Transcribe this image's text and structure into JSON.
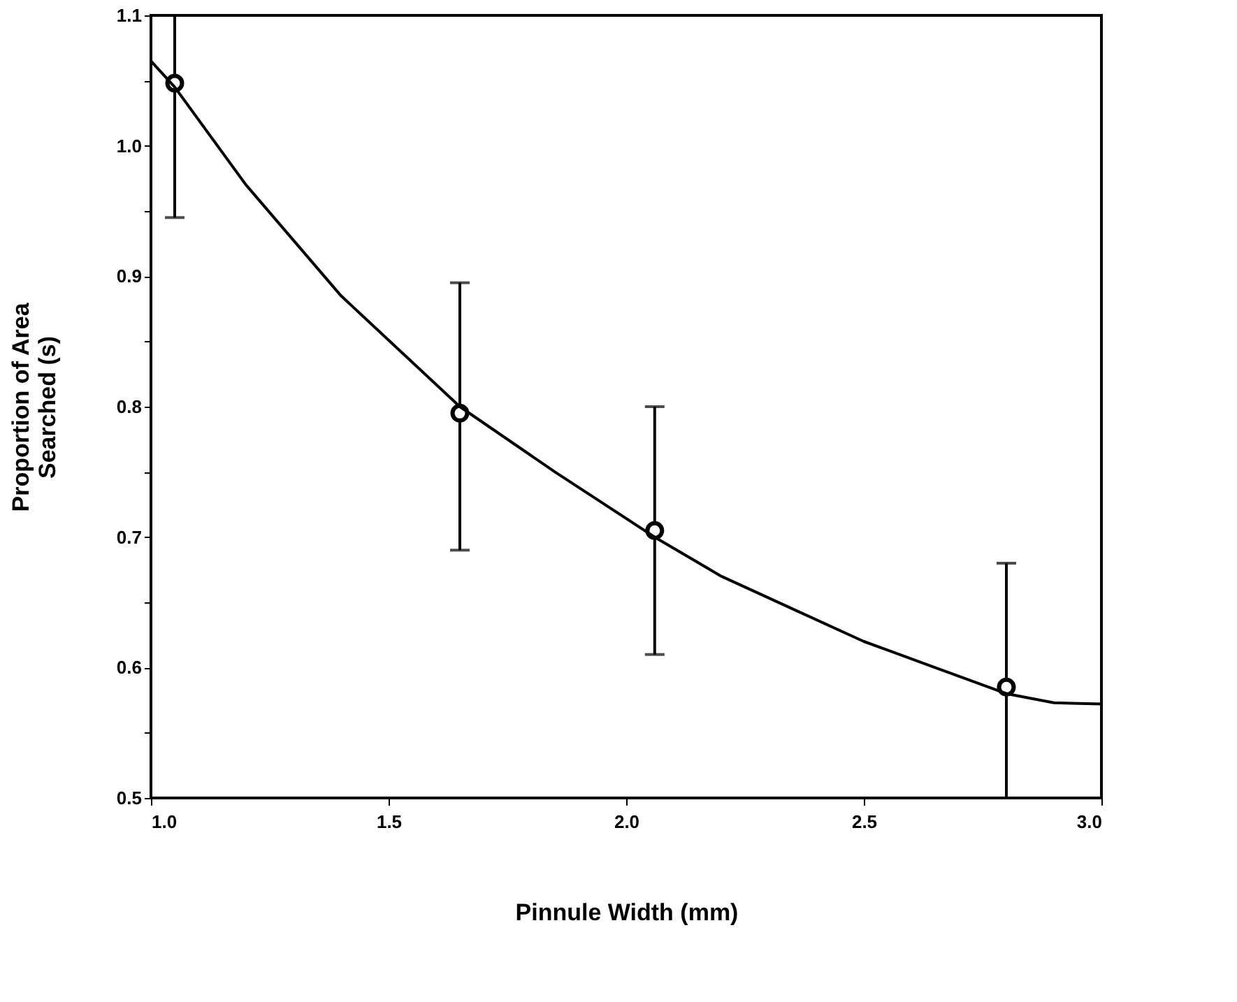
{
  "chart_data": {
    "type": "scatter",
    "xlabel": "Pinnule Width  (mm)",
    "ylabel": "Proportion of Area\nSearched (s)",
    "xlim": [
      1.0,
      3.0
    ],
    "ylim": [
      0.5,
      1.1
    ],
    "xticks": [
      {
        "value": 1.0,
        "label": "1.0"
      },
      {
        "value": 1.5,
        "label": "1.5"
      },
      {
        "value": 2.0,
        "label": "2.0"
      },
      {
        "value": 2.5,
        "label": "2.5"
      },
      {
        "value": 3.0,
        "label": "3.0"
      }
    ],
    "yticks": [
      {
        "value": 0.5,
        "label": "0.5"
      },
      {
        "value": 0.55,
        "label": null
      },
      {
        "value": 0.6,
        "label": "0.6"
      },
      {
        "value": 0.65,
        "label": null
      },
      {
        "value": 0.7,
        "label": "0.7"
      },
      {
        "value": 0.75,
        "label": null
      },
      {
        "value": 0.8,
        "label": "0.8"
      },
      {
        "value": 0.85,
        "label": null
      },
      {
        "value": 0.9,
        "label": "0.9"
      },
      {
        "value": 0.95,
        "label": null
      },
      {
        "value": 1.0,
        "label": "1.0"
      },
      {
        "value": 1.05,
        "label": null
      },
      {
        "value": 1.1,
        "label": "1.1"
      }
    ],
    "grid": false,
    "marker": "circle",
    "x": [
      1.05,
      1.65,
      2.06,
      2.8
    ],
    "series": [
      {
        "color": "#000000",
        "values": [
          1.048,
          0.795,
          0.705,
          0.585
        ],
        "errors": [
          [
            0.945,
            1.1
          ],
          [
            0.69,
            0.895
          ],
          [
            0.61,
            0.8
          ],
          [
            0.5,
            0.68
          ]
        ]
      },
      {
        "type": "line",
        "color": "#000000",
        "line_style": "solid",
        "marker": "none",
        "x": [
          1.0,
          1.05,
          1.2,
          1.4,
          1.65,
          1.85,
          2.06,
          2.2,
          2.35,
          2.5,
          2.65,
          2.8,
          2.9,
          3.0
        ],
        "values": [
          1.065,
          1.045,
          0.97,
          0.885,
          0.8,
          0.75,
          0.7,
          0.67,
          0.645,
          0.62,
          0.6,
          0.58,
          0.573,
          0.572
        ]
      }
    ]
  }
}
